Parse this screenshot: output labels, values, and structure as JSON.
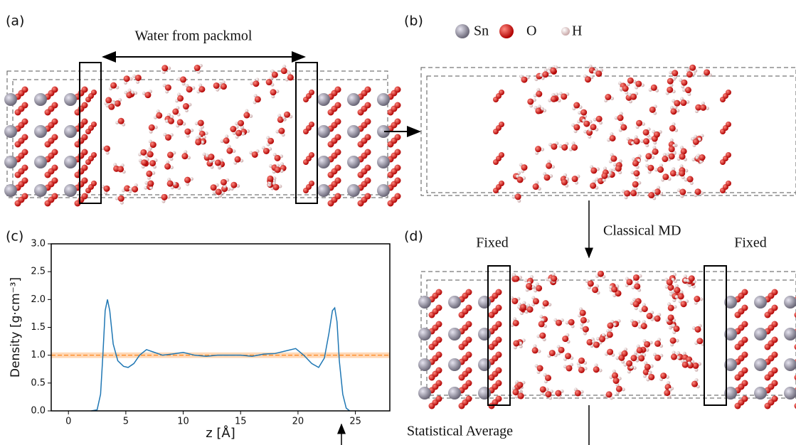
{
  "panels": {
    "a": "(a)",
    "b": "(b)",
    "c": "(c)",
    "d": "(d)"
  },
  "annotations": {
    "water": "Water from packmol",
    "md": "Classical MD",
    "fixed_left": "Fixed",
    "fixed_right": "Fixed",
    "average": "Statistical Average"
  },
  "legend": {
    "sn": "Sn",
    "o": "O",
    "h": "H"
  },
  "chart_data": {
    "type": "line",
    "xlabel": "z [Å]",
    "ylabel": "Density [g·cm⁻³]",
    "color": "#1f77b4",
    "x": [
      2.0,
      2.5,
      2.8,
      3.0,
      3.2,
      3.4,
      3.6,
      3.9,
      4.3,
      4.8,
      5.2,
      5.7,
      6.2,
      6.8,
      7.5,
      8.2,
      9.0,
      10.0,
      11.0,
      12.0,
      13.0,
      14.0,
      15.0,
      16.0,
      17.0,
      18.0,
      19.0,
      19.8,
      20.5,
      21.2,
      21.8,
      22.3,
      22.7,
      23.0,
      23.2,
      23.4,
      23.6,
      23.9,
      24.2,
      24.5
    ],
    "values": [
      0,
      0.02,
      0.3,
      1.0,
      1.8,
      2.0,
      1.8,
      1.2,
      0.9,
      0.8,
      0.78,
      0.85,
      1.0,
      1.1,
      1.05,
      1.0,
      1.02,
      1.05,
      1.0,
      0.98,
      1.0,
      1.0,
      1.0,
      0.98,
      1.02,
      1.03,
      1.08,
      1.12,
      1.0,
      0.85,
      0.78,
      0.95,
      1.4,
      1.8,
      1.85,
      1.6,
      0.9,
      0.3,
      0.05,
      0
    ],
    "reference": {
      "value": 1.0,
      "band": [
        0.95,
        1.05
      ],
      "color": "#ff7f0e"
    },
    "xlim": [
      -1.5,
      28
    ],
    "ylim": [
      0,
      3
    ],
    "xticks": [
      0,
      5,
      10,
      15,
      20,
      25
    ],
    "yticks": [
      {
        "value": 0,
        "label": "0.0"
      },
      {
        "value": 0.5,
        "label": "0.5"
      },
      {
        "value": 1,
        "label": "1.0"
      },
      {
        "value": 1.5,
        "label": "1.5"
      },
      {
        "value": 2,
        "label": "2.0"
      },
      {
        "value": 2.5,
        "label": "2.5"
      },
      {
        "value": 3,
        "label": "3.0"
      }
    ]
  }
}
